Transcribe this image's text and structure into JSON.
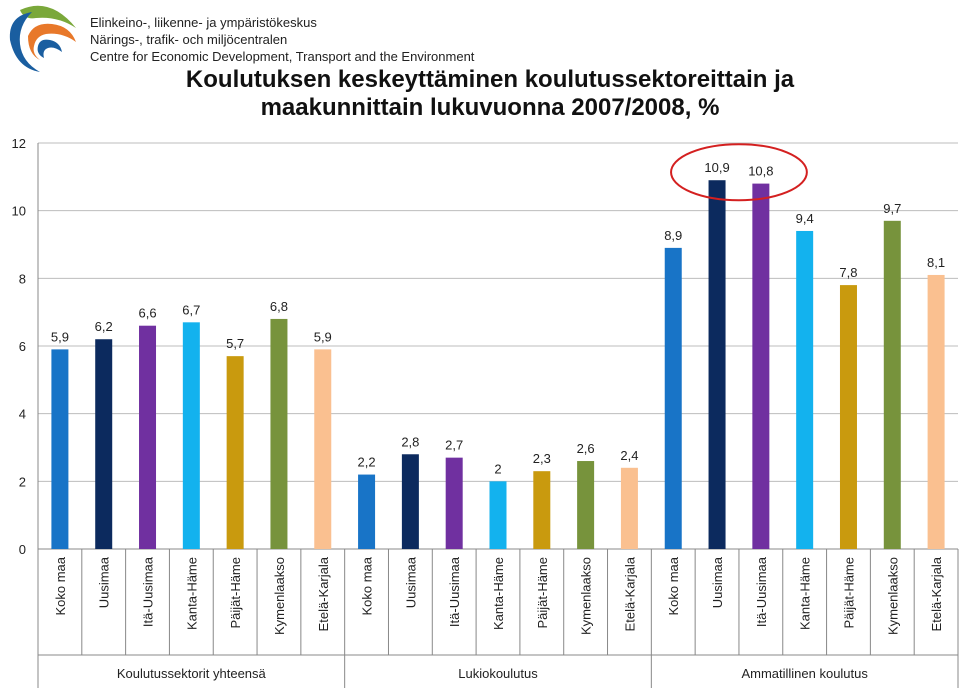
{
  "header": {
    "org_lines": [
      "Elinkeino-, liikenne- ja ympäristökeskus",
      "Närings-, trafik- och miljöcentralen",
      "Centre for Economic Development, Transport and the Environment"
    ]
  },
  "chart_data": {
    "type": "bar",
    "title_lines": [
      "Koulutuksen keskeyttäminen koulutussektoreittain ja",
      "maakunnittain lukuvuonna 2007/2008, %"
    ],
    "ylim": [
      0,
      12
    ],
    "yticks": [
      0,
      2,
      4,
      6,
      8,
      10,
      12
    ],
    "grid": true,
    "groups": [
      {
        "label": "Koulutussektorit yhteensä",
        "categories": [
          "Koko maa",
          "Uusimaa",
          "Itä-Uusimaa",
          "Kanta-Häme",
          "Päijät-Häme",
          "Kymenlaakso",
          "Etelä-Karjala"
        ],
        "values": [
          5.9,
          6.2,
          6.6,
          6.7,
          5.7,
          6.8,
          5.9
        ],
        "value_labels": [
          "5,9",
          "6,2",
          "6,6",
          "6,7",
          "5,7",
          "6,8",
          "5,9"
        ]
      },
      {
        "label": "Lukiokoulutus",
        "categories": [
          "Koko maa",
          "Uusimaa",
          "Itä-Uusimaa",
          "Kanta-Häme",
          "Päijät-Häme",
          "Kymenlaakso",
          "Etelä-Karjala"
        ],
        "values": [
          2.2,
          2.8,
          2.7,
          2.0,
          2.3,
          2.6,
          2.4
        ],
        "value_labels": [
          "2,2",
          "2,8",
          "2,7",
          "2",
          "2,3",
          "2,6",
          "2,4"
        ]
      },
      {
        "label": "Ammatillinen koulutus",
        "categories": [
          "Koko maa",
          "Uusimaa",
          "Itä-Uusimaa",
          "Kanta-Häme",
          "Päijät-Häme",
          "Kymenlaakso",
          "Etelä-Karjala"
        ],
        "values": [
          8.9,
          10.9,
          10.8,
          9.4,
          7.8,
          9.7,
          8.1
        ],
        "value_labels": [
          "8,9",
          "10,9",
          "10,8",
          "9,4",
          "7,8",
          "9,7",
          "8,1"
        ]
      }
    ],
    "colors": [
      "#1874c7",
      "#0c2a5e",
      "#7030a0",
      "#13b2ee",
      "#c99a0e",
      "#77933c",
      "#fac090"
    ],
    "highlight": {
      "group": 2,
      "bars": [
        1,
        2
      ],
      "color": "#d42020"
    }
  }
}
